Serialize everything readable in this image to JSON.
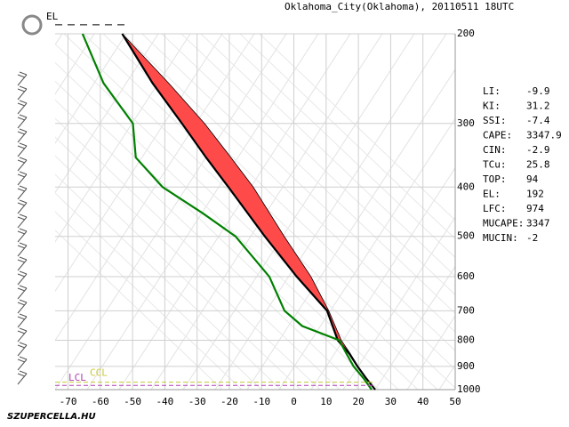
{
  "chart_data": {
    "type": "skewt",
    "title": "Oklahoma_City(Oklahoma), 20110511 18UTC",
    "xlim": [
      -74,
      50
    ],
    "xticks": [
      -70,
      -60,
      -50,
      -40,
      -30,
      -20,
      -10,
      0,
      10,
      20,
      30,
      40,
      50
    ],
    "ylim": [
      1000,
      200
    ],
    "yticks": [
      200,
      300,
      400,
      500,
      600,
      700,
      800,
      900,
      1000
    ],
    "log_y": true,
    "grid": true,
    "cape_fill": "#ff4a4a",
    "series": [
      {
        "color": "#000000",
        "x": [
          -53.2,
          -38.8,
          -27.7,
          -19.5,
          -12.6,
          -3.0,
          5.3,
          10.8,
          14.7,
          17.5,
          19.9,
          22.4,
          25.2
        ],
        "y": [
          200,
          250,
          300,
          350,
          400,
          500,
          600,
          700,
          800,
          850,
          900,
          950,
          1000
        ]
      },
      {
        "color": "#000000",
        "x": [
          -53.2,
          -43.8,
          -34.7,
          -27.2,
          -20.3,
          -9.0,
          0.9,
          10.3,
          13.6,
          17.2,
          19.7,
          22.4,
          25.2
        ],
        "y": [
          200,
          250,
          300,
          350,
          400,
          500,
          600,
          700,
          800,
          850,
          900,
          950,
          1000
        ]
      },
      {
        "color": "#008000",
        "x": [
          -65.5,
          -59.0,
          -49.9,
          -49.0,
          -40.7,
          -28.3,
          -18.1,
          -7.6,
          -2.9,
          2.6,
          14.1,
          16.3,
          18.5,
          21.6,
          24.1
        ],
        "y": [
          200,
          250,
          300,
          350,
          400,
          450,
          500,
          600,
          700,
          750,
          800,
          850,
          900,
          950,
          1000
        ]
      }
    ],
    "levels": [
      {
        "label": "LCL",
        "color": "#b040b0",
        "pressure": 981
      },
      {
        "label": "CCL",
        "color": "#c8c832",
        "pressure": 967
      }
    ],
    "el_label": "EL",
    "indices": [
      {
        "label": "LI:",
        "value": -9.9
      },
      {
        "label": "KI:",
        "value": 31.2
      },
      {
        "label": "SSI:",
        "value": -7.4
      },
      {
        "label": "CAPE:",
        "value": 3347.9
      },
      {
        "label": "CIN:",
        "value": -2.9
      },
      {
        "label": "TCu:",
        "value": 25.8
      },
      {
        "label": "TOP:",
        "value": 94
      },
      {
        "label": "EL:",
        "value": 192
      },
      {
        "label": "LFC:",
        "value": 974
      },
      {
        "label": "MUCAPE:",
        "value": 3347
      },
      {
        "label": "MUCIN:",
        "value": -2
      }
    ]
  },
  "footer": {
    "logo": "SZUPERCELLA.HU"
  }
}
